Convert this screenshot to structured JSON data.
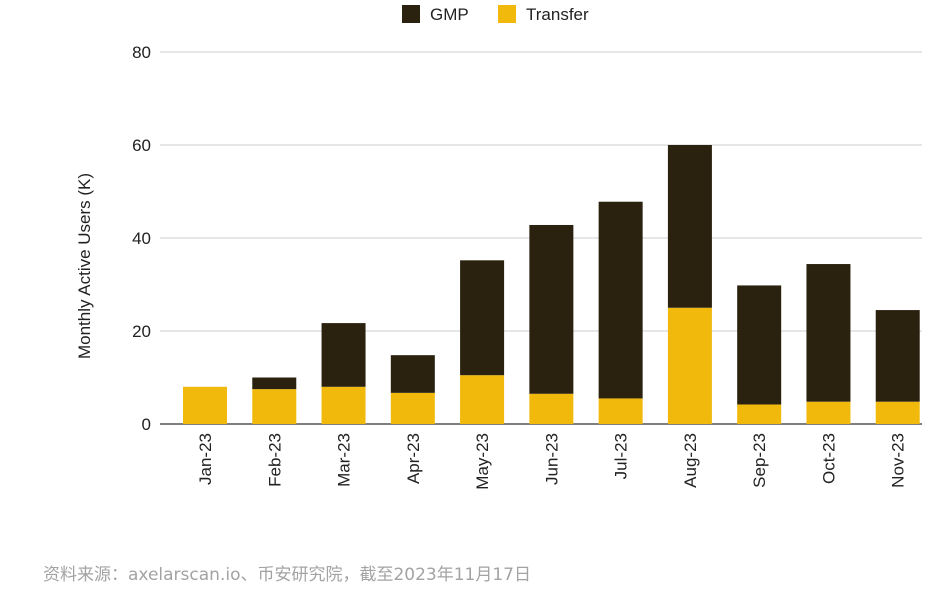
{
  "chart_data": {
    "type": "bar",
    "stacked": true,
    "categories": [
      "Jan-23",
      "Feb-23",
      "Mar-23",
      "Apr-23",
      "May-23",
      "Jun-23",
      "Jul-23",
      "Aug-23",
      "Sep-23",
      "Oct-23",
      "Nov-23"
    ],
    "series": [
      {
        "name": "Transfer",
        "color": "#f0b90b",
        "values": [
          8,
          7.5,
          8,
          6.7,
          10.5,
          6.5,
          5.5,
          25,
          4.2,
          4.8,
          4.8
        ]
      },
      {
        "name": "GMP",
        "color": "#2a210e",
        "values": [
          0,
          2.5,
          13.7,
          8.1,
          24.7,
          36.3,
          42.3,
          35,
          25.6,
          29.6,
          19.7
        ]
      }
    ],
    "legend": [
      {
        "name": "GMP",
        "color": "#2a210e"
      },
      {
        "name": "Transfer",
        "color": "#f0b90b"
      }
    ],
    "title": "",
    "xlabel": "",
    "ylabel": "Monthly Active Users (K)",
    "ylim": [
      0,
      80
    ],
    "yticks": [
      0,
      20,
      40,
      60,
      80
    ],
    "grid": true,
    "legend_position": "top-center"
  },
  "source": "资料来源：axelarscan.io、币安研究院，截至2023年11月17日"
}
